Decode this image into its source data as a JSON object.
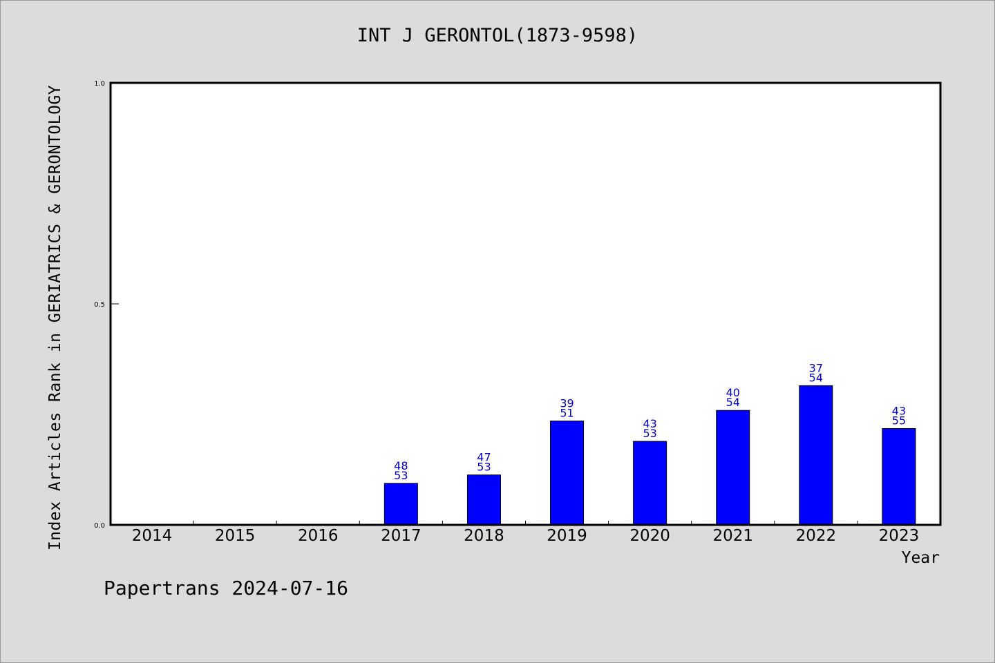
{
  "chart_data": {
    "type": "bar",
    "title": "INT J GERONTOL(1873-9598)",
    "xlabel": "Year",
    "ylabel": "Index Articles Rank in GERIATRICS & GERONTOLOGY",
    "ylim": [
      0,
      1
    ],
    "yticks": [
      "0.0",
      "0.5",
      "1.0"
    ],
    "grid": false,
    "categories": [
      "2014",
      "2015",
      "2016",
      "2017",
      "2018",
      "2019",
      "2020",
      "2021",
      "2022",
      "2023"
    ],
    "values": [
      null,
      null,
      null,
      0.094,
      0.113,
      0.235,
      0.189,
      0.259,
      0.315,
      0.218
    ],
    "rank_labels": [
      "",
      "",
      "",
      "48",
      "47",
      "39",
      "43",
      "40",
      "37",
      "43"
    ],
    "total_labels": [
      "",
      "",
      "",
      "53",
      "53",
      "51",
      "53",
      "54",
      "54",
      "55"
    ],
    "bar_color": "#0000ff",
    "label_color": "#0000cc"
  },
  "footer": {
    "note": "Papertrans 2024-07-16"
  }
}
